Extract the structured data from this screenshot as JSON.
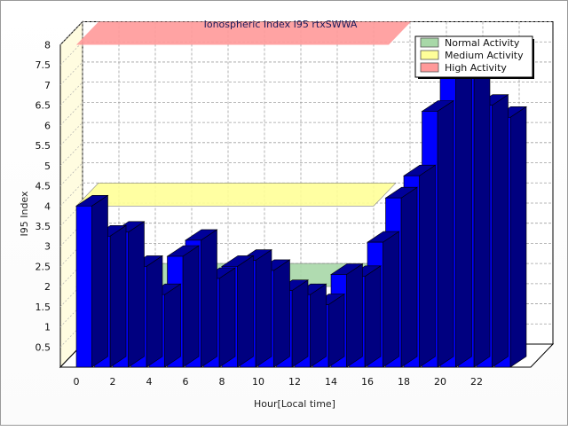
{
  "chart_data": {
    "type": "bar",
    "title": "Ionospheric Index I95 rtxSWWA",
    "xlabel": "Hour[Local time]",
    "ylabel": "I95 Index",
    "ylim": [
      0,
      8
    ],
    "y_ticks": [
      "0.5",
      "1",
      "1.5",
      "2",
      "2.5",
      "3",
      "3.5",
      "4",
      "4.5",
      "5",
      "5.5",
      "6",
      "6.5",
      "7",
      "7.5",
      "8"
    ],
    "x_tick_labels": [
      "0",
      "2",
      "4",
      "6",
      "8",
      "10",
      "12",
      "14",
      "16",
      "18",
      "20",
      "22"
    ],
    "categories": [
      0,
      1,
      2,
      3,
      4,
      5,
      6,
      7,
      8,
      9,
      10,
      11,
      12,
      13,
      14,
      15,
      16,
      17,
      18,
      19,
      20,
      21,
      22,
      23
    ],
    "values": [
      4.0,
      3.25,
      3.35,
      2.5,
      1.8,
      2.75,
      3.15,
      2.2,
      2.5,
      2.65,
      2.4,
      1.9,
      1.8,
      1.55,
      2.3,
      2.25,
      3.1,
      4.2,
      4.75,
      6.35,
      7.2,
      7.7,
      6.5,
      6.2
    ],
    "bar_color": "#0000ff",
    "bands": [
      {
        "name": "Normal Activity",
        "from": 0,
        "to": 2,
        "color": "#a8d8a8"
      },
      {
        "name": "Medium Activity",
        "from": 2,
        "to": 4,
        "color": "#ffff99"
      },
      {
        "name": "High Activity",
        "from": 4,
        "to": 8,
        "color": "#ff9999"
      }
    ],
    "legend": [
      "Normal Activity",
      "Medium Activity",
      "High Activity"
    ],
    "legend_position": "top-right",
    "grid": true
  }
}
